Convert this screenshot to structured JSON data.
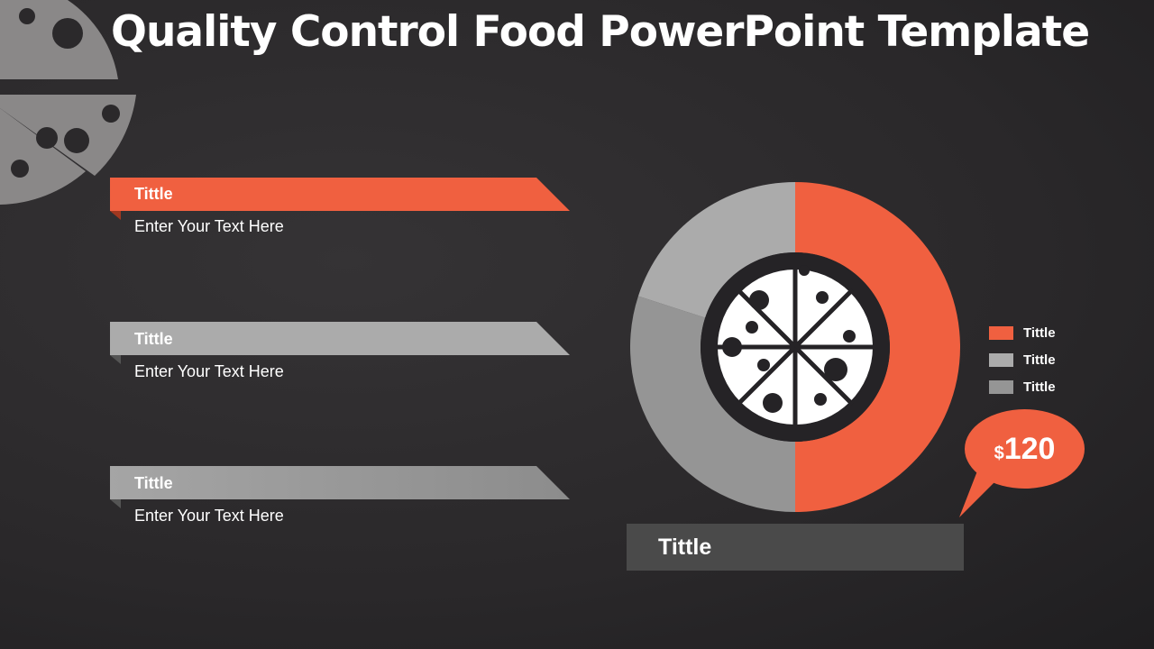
{
  "title": "Quality Control Food PowerPoint Template",
  "items": [
    {
      "title": "Tittle",
      "text": "Enter Your Text Here",
      "color": "#f06040"
    },
    {
      "title": "Tittle",
      "text": "Enter Your Text Here",
      "color": "#ababab"
    },
    {
      "title": "Tittle",
      "text": "Enter Your Text Here",
      "color": "#959595"
    }
  ],
  "chart_data": {
    "type": "pie",
    "donut": true,
    "categories": [
      "Tittle",
      "Tittle",
      "Tittle"
    ],
    "values": [
      50,
      20,
      30
    ],
    "colors": [
      "#f06040",
      "#ababab",
      "#959595"
    ],
    "legend_position": "right",
    "center_icon": "pizza-icon"
  },
  "callout": {
    "currency": "$",
    "value": "120"
  },
  "bottom_label": "Tittle"
}
